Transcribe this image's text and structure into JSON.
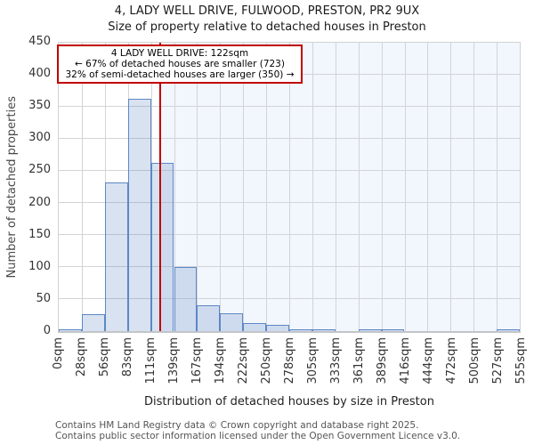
{
  "page": {
    "title_line1": "4, LADY WELL DRIVE, FULWOOD, PRESTON, PR2 9UX",
    "title_line2": "Size of property relative to detached houses in Preston"
  },
  "annotation": {
    "line1": "4 LADY WELL DRIVE: 122sqm",
    "line2": "← 67% of detached houses are smaller (723)",
    "line3": "32% of semi-detached houses are larger (350) →"
  },
  "footer": {
    "line1": "Contains HM Land Registry data © Crown copyright and database right 2025.",
    "line2": "Contains public sector information licensed under the Open Government Licence v3.0."
  },
  "chart_data": {
    "type": "bar",
    "title": "4, LADY WELL DRIVE, FULWOOD, PRESTON, PR2 9UX",
    "subtitle": "Size of property relative to detached houses in Preston",
    "xlabel": "Distribution of detached houses by size in Preston",
    "ylabel": "Number of detached properties",
    "x_axis_max_sqm": 555,
    "bin_width_sqm": 27.75,
    "x_tick_labels": [
      "0sqm",
      "28sqm",
      "56sqm",
      "83sqm",
      "111sqm",
      "139sqm",
      "167sqm",
      "194sqm",
      "222sqm",
      "250sqm",
      "278sqm",
      "305sqm",
      "333sqm",
      "361sqm",
      "389sqm",
      "416sqm",
      "444sqm",
      "472sqm",
      "500sqm",
      "527sqm",
      "555sqm"
    ],
    "values": [
      2,
      26,
      232,
      362,
      262,
      100,
      40,
      28,
      13,
      10,
      1,
      3,
      0,
      1,
      1,
      0,
      0,
      0,
      0,
      2
    ],
    "ylim": [
      0,
      450
    ],
    "y_ticks": [
      0,
      50,
      100,
      150,
      200,
      250,
      300,
      350,
      400,
      450
    ],
    "grid": true,
    "legend": "none",
    "marker": {
      "value_sqm": 122,
      "label": "4 LADY WELL DRIVE: 122sqm"
    },
    "shaded_region": {
      "from_sqm": 122,
      "to_sqm": 555
    }
  },
  "colors": {
    "bar_fill": "rgba(91,135,195,0.24)",
    "bar_border": "#5d87c4",
    "marker_line": "#c00000",
    "annotation_border": "#c00000",
    "shaded_region": "#f2f6fd",
    "gridline": "#d2d4d8",
    "axis_line": "#c2c5c9",
    "title_text": "#1a1a1a",
    "tick_text": "#333333",
    "footer_text": "#555555"
  }
}
